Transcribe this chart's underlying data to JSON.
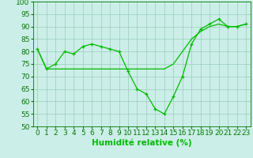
{
  "x": [
    0,
    1,
    2,
    3,
    4,
    5,
    6,
    7,
    8,
    9,
    10,
    11,
    12,
    13,
    14,
    15,
    16,
    17,
    18,
    19,
    20,
    21,
    22,
    23
  ],
  "line1": [
    81,
    73,
    75,
    80,
    79,
    82,
    83,
    82,
    81,
    80,
    72,
    65,
    63,
    57,
    55,
    62,
    70,
    83,
    89,
    91,
    93,
    90,
    90,
    91
  ],
  "line2": [
    81,
    73,
    73,
    73,
    73,
    73,
    73,
    73,
    73,
    73,
    73,
    73,
    73,
    73,
    73,
    75,
    80,
    85,
    88,
    90,
    91,
    90,
    90,
    91
  ],
  "line_color": "#00bb00",
  "bg_color": "#cceee8",
  "grid_color": "#99ccbb",
  "xlabel": "Humidité relative (%)",
  "ylim": [
    50,
    100
  ],
  "xlim": [
    -0.5,
    23.5
  ],
  "yticks": [
    50,
    55,
    60,
    65,
    70,
    75,
    80,
    85,
    90,
    95,
    100
  ],
  "xticks": [
    0,
    1,
    2,
    3,
    4,
    5,
    6,
    7,
    8,
    9,
    10,
    11,
    12,
    13,
    14,
    15,
    16,
    17,
    18,
    19,
    20,
    21,
    22,
    23
  ],
  "tick_fontsize": 6.5,
  "xlabel_fontsize": 7.5
}
